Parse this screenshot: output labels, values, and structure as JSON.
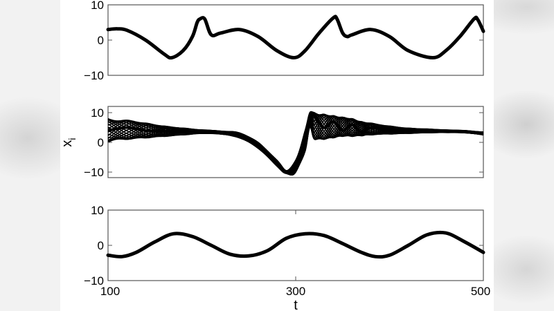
{
  "chart_data": [
    {
      "type": "line",
      "panel": "top",
      "title": "",
      "xlabel": "",
      "ylabel": "",
      "xlim": [
        100,
        500
      ],
      "ylim": [
        -10,
        10
      ],
      "yticks": [
        -10,
        0,
        10
      ],
      "ytick_labels": [
        "−10",
        "0",
        "10"
      ],
      "grid": false,
      "description": "Bundle of many overlapping trajectories x_i(t); thin black band",
      "x": [
        100,
        110,
        120,
        140,
        160,
        168,
        180,
        190,
        195,
        198,
        203,
        210,
        220,
        240,
        260,
        280,
        298,
        310,
        325,
        340,
        344,
        350,
        355,
        360,
        380,
        400,
        420,
        446,
        460,
        475,
        490,
        494,
        500
      ],
      "y": [
        3,
        3.2,
        2.8,
        0,
        -4,
        -5,
        -3,
        1,
        5,
        6,
        6,
        1.5,
        2,
        3,
        1,
        -3,
        -5,
        -3,
        2,
        6.3,
        6,
        2,
        1,
        1.5,
        3,
        1,
        -3,
        -5,
        -3,
        1,
        6,
        5.8,
        2.5
      ]
    },
    {
      "type": "line",
      "panel": "middle",
      "title": "",
      "xlabel": "",
      "ylabel": "x_i",
      "xlim": [
        100,
        500
      ],
      "ylim": [
        -12,
        12
      ],
      "yticks": [
        -10,
        0,
        10
      ],
      "ytick_labels": [
        "−10",
        "0",
        "10"
      ],
      "grid": false,
      "description": "Many trajectories with decaying oscillating envelope; dips to -10 near t=290, surges to +10 near t=310",
      "x": [
        100,
        120,
        140,
        160,
        180,
        200,
        220,
        240,
        260,
        280,
        290,
        300,
        310,
        315,
        320,
        330,
        340,
        350,
        360,
        370,
        380,
        400,
        420,
        440,
        460,
        480,
        500
      ],
      "y": [
        4,
        5,
        4,
        3.8,
        3.5,
        3.8,
        3.2,
        2.5,
        -1,
        -7,
        -10,
        -8,
        0,
        9,
        9,
        5,
        7,
        4,
        6,
        3.5,
        5,
        4,
        3.5,
        3.8,
        3.8,
        3.5,
        3
      ],
      "band_upper": [
        8,
        7.5,
        6.5,
        5.5,
        4.8,
        4.2,
        3.8,
        3.2,
        0,
        -6,
        -9.5,
        -6,
        4,
        10,
        10,
        9.5,
        9,
        8.5,
        8,
        7,
        6.5,
        5.5,
        4.8,
        4.5,
        4.2,
        4,
        3.5
      ],
      "band_lower": [
        0,
        1,
        1.5,
        2,
        2.5,
        3,
        2.8,
        1.5,
        -2,
        -8,
        -10.5,
        -10,
        -3,
        5,
        1,
        1,
        1.5,
        2,
        2,
        2.2,
        2.5,
        2.8,
        3,
        3.2,
        3.3,
        3.2,
        2.5
      ]
    },
    {
      "type": "line",
      "panel": "bottom",
      "title": "",
      "xlabel": "t",
      "ylabel": "",
      "xlim": [
        100,
        500
      ],
      "ylim": [
        -10,
        10
      ],
      "xticks": [
        100,
        300,
        500
      ],
      "xtick_labels": [
        "100",
        "300",
        "500"
      ],
      "yticks": [
        -10,
        0,
        10
      ],
      "ytick_labels": [
        "−10",
        "0",
        "10"
      ],
      "grid": false,
      "description": "Smooth sinusoid-like bundle, period ~135, amplitude ~3.5",
      "x": [
        100,
        115,
        130,
        150,
        170,
        190,
        210,
        230,
        250,
        270,
        290,
        310,
        330,
        350,
        370,
        385,
        400,
        420,
        440,
        460,
        480,
        500
      ],
      "y": [
        -2.8,
        -3.2,
        -2,
        1,
        3.3,
        2.5,
        0,
        -2.5,
        -3,
        -1.5,
        2,
        3.3,
        2.8,
        0.5,
        -2,
        -3.2,
        -2.8,
        0,
        3,
        3.5,
        1,
        -2
      ]
    }
  ],
  "figure": {
    "ylabel": "x",
    "ylabel_subscript": "i",
    "xlabel": "t"
  }
}
